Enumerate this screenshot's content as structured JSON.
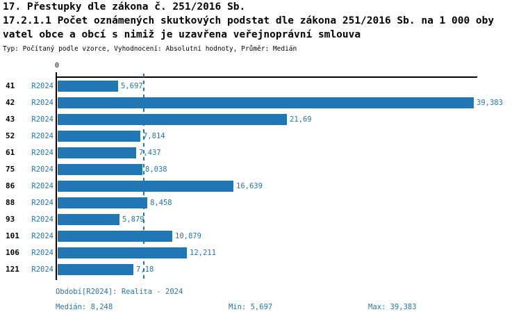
{
  "accent_color": "#2077b4",
  "axis_color": "#000000",
  "header": {
    "title_line1": "17. Přestupky dle zákona č. 251/2016 Sb.",
    "title_line2": "17.2.1.1 Počet oznámených skutkových podstat dle zákona 251/2016 Sb. na 1 000 oby",
    "title_line3": "vatel obce a obcí s nimiž je uzavřena veřejnoprávní smlouva",
    "meta": "Typ: Počítaný podle vzorce, Vyhodnocení: Absolutní hodnoty, Průměr: Medián"
  },
  "chart_data": {
    "type": "bar",
    "orientation": "horizontal",
    "origin_tick_label": "0",
    "x_min": 0,
    "x_max": 39.383,
    "categories": [
      "41",
      "42",
      "43",
      "52",
      "61",
      "75",
      "86",
      "88",
      "93",
      "101",
      "106",
      "121"
    ],
    "series": [
      {
        "name": "R2024",
        "values": [
          5.697,
          39.383,
          21.69,
          7.814,
          7.437,
          8.038,
          16.639,
          8.458,
          5.879,
          10.879,
          12.211,
          7.18
        ]
      }
    ],
    "value_labels": [
      "5,697",
      "39,383",
      "21,69",
      "7,814",
      "7,437",
      "8,038",
      "16,639",
      "8,458",
      "5,879",
      "10,879",
      "12,211",
      "7,18"
    ],
    "median_line": {
      "value": 8.248,
      "label": "8,248",
      "style": "dashed"
    },
    "bar_color": "#2077b4",
    "grid": false,
    "legend_position": "none"
  },
  "footer": {
    "period_label": "Období[R2024]: Realita - 2024",
    "median_label": "Medián: 8,248",
    "min_label": "Min: 5,697",
    "max_label": "Max: 39,383"
  }
}
